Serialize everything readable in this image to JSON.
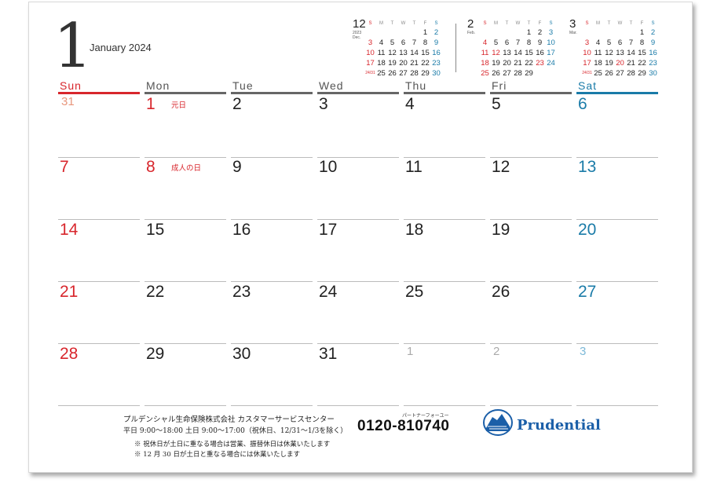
{
  "header": {
    "month_number": "1",
    "month_title": "January 2024"
  },
  "colors": {
    "sun": "#d8262c",
    "sat": "#1a7ba8",
    "weekday": "#222222",
    "muted_sun": "#e8967c",
    "muted_sat": "#7db9d8",
    "muted": "#aaaaaa",
    "brand": "#1b5fa8"
  },
  "mini_calendars": [
    {
      "number": "12",
      "sub": [
        "2023",
        "Dec."
      ],
      "headers": [
        "S",
        "M",
        "T",
        "W",
        "T",
        "F",
        "S"
      ],
      "weeks": [
        [
          "",
          "",
          "",
          "",
          "",
          "1",
          "2"
        ],
        [
          "3",
          "4",
          "5",
          "6",
          "7",
          "8",
          "9"
        ],
        [
          "10",
          "11",
          "12",
          "13",
          "14",
          "15",
          "16"
        ],
        [
          "17",
          "18",
          "19",
          "20",
          "21",
          "22",
          "23"
        ],
        [
          "24/31",
          "25",
          "26",
          "27",
          "28",
          "29",
          "30"
        ]
      ],
      "red": [
        "3",
        "10",
        "17",
        "24/31"
      ],
      "blue": [
        "2",
        "9",
        "16",
        "23",
        "30"
      ]
    },
    {
      "number": "2",
      "sub": [
        "Feb."
      ],
      "headers": [
        "S",
        "M",
        "T",
        "W",
        "T",
        "F",
        "S"
      ],
      "weeks": [
        [
          "",
          "",
          "",
          "",
          "1",
          "2",
          "3"
        ],
        [
          "4",
          "5",
          "6",
          "7",
          "8",
          "9",
          "10"
        ],
        [
          "11",
          "12",
          "13",
          "14",
          "15",
          "16",
          "17"
        ],
        [
          "18",
          "19",
          "20",
          "21",
          "22",
          "23",
          "24"
        ],
        [
          "25",
          "26",
          "27",
          "28",
          "29",
          "",
          ""
        ]
      ],
      "red": [
        "4",
        "11",
        "12",
        "18",
        "23",
        "25"
      ],
      "blue": [
        "3",
        "10",
        "17",
        "24"
      ]
    },
    {
      "number": "3",
      "sub": [
        "Mar."
      ],
      "headers": [
        "S",
        "M",
        "T",
        "W",
        "T",
        "F",
        "S"
      ],
      "weeks": [
        [
          "",
          "",
          "",
          "",
          "",
          "1",
          "2"
        ],
        [
          "3",
          "4",
          "5",
          "6",
          "7",
          "8",
          "9"
        ],
        [
          "10",
          "11",
          "12",
          "13",
          "14",
          "15",
          "16"
        ],
        [
          "17",
          "18",
          "19",
          "20",
          "21",
          "22",
          "23"
        ],
        [
          "24/31",
          "25",
          "26",
          "27",
          "28",
          "29",
          "30"
        ]
      ],
      "red": [
        "3",
        "10",
        "17",
        "20",
        "24/31"
      ],
      "blue": [
        "2",
        "9",
        "16",
        "23",
        "30"
      ]
    }
  ],
  "weekdays": [
    "Sun",
    "Mon",
    "Tue",
    "Wed",
    "Thu",
    "Fri",
    "Sat"
  ],
  "weeks": [
    [
      "31",
      "1",
      "2",
      "3",
      "4",
      "5",
      "6"
    ],
    [
      "7",
      "8",
      "9",
      "10",
      "11",
      "12",
      "13"
    ],
    [
      "14",
      "15",
      "16",
      "17",
      "18",
      "19",
      "20"
    ],
    [
      "21",
      "22",
      "23",
      "24",
      "25",
      "26",
      "27"
    ],
    [
      "28",
      "29",
      "30",
      "31",
      "1",
      "2",
      "3"
    ]
  ],
  "holidays": [
    {
      "week": 0,
      "day": 1,
      "name": "元日"
    },
    {
      "week": 1,
      "day": 1,
      "name": "成人の日"
    }
  ],
  "footer": {
    "company": "プルデンシャル生命保険株式会社  カスタマーサービスセンター",
    "hours": "平日 9:00～18:00   土日 9:00～17:00（祝休日、12/31～1/3を除く）",
    "phone_kana": "パートナーフォーユー",
    "phone": "0120-810740",
    "note1": "※ 祝休日が土日に重なる場合は営業、振替休日は休業いたします",
    "note2": "※ 12 月 30 日が土日と重なる場合には休業いたします",
    "logo_text": "Prudential",
    "logo_icon": "rock-of-gibraltar-icon"
  }
}
